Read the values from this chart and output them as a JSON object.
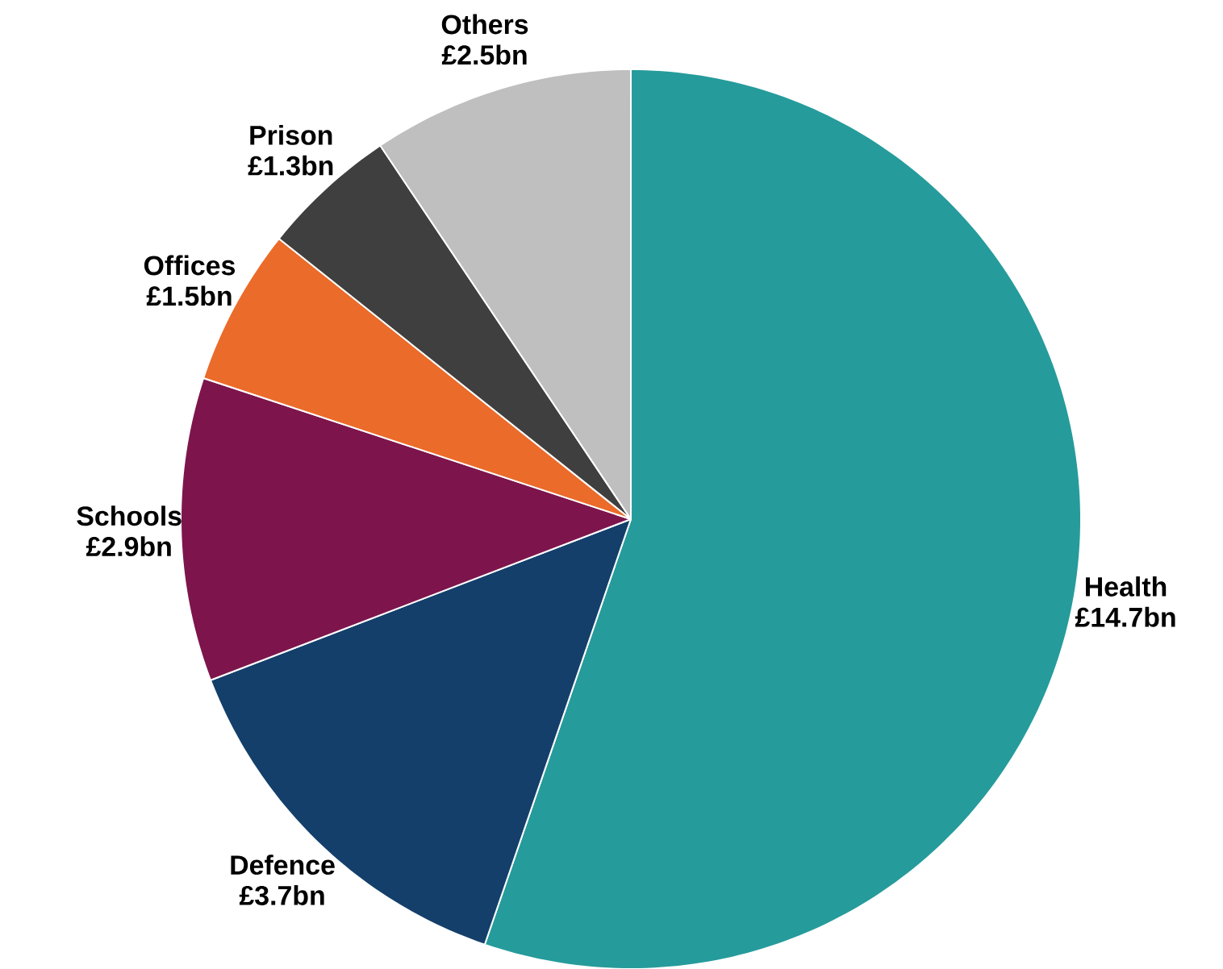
{
  "chart_data": {
    "type": "pie",
    "categories": [
      "Health",
      "Defence",
      "Schools",
      "Offices",
      "Prison",
      "Others"
    ],
    "values": [
      14.7,
      3.7,
      2.9,
      1.5,
      1.3,
      2.5
    ],
    "colors": [
      "#269b9b",
      "#143f6b",
      "#7d154c",
      "#eb6b2a",
      "#3f3f3f",
      "#bfbfbf"
    ],
    "value_labels": [
      "£14.7bn",
      "£3.7bn",
      "£2.9bn",
      "£1.5bn",
      "£1.3bn",
      "£2.5bn"
    ]
  }
}
